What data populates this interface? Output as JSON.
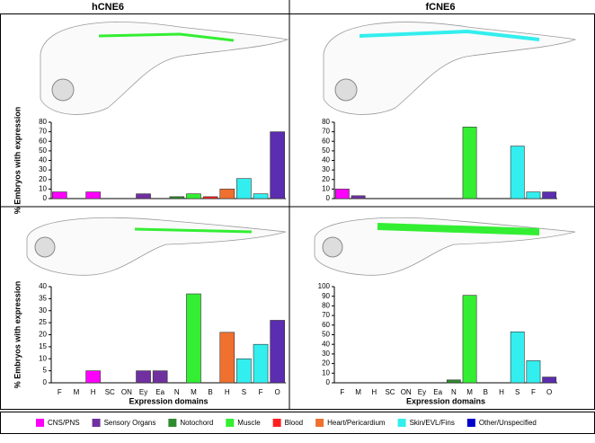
{
  "chart_data": [
    {
      "type": "bar",
      "title": "hCNE6",
      "ylabel": "% Embryos with expression",
      "categories": [
        null,
        null,
        null,
        null,
        null,
        null,
        null,
        null,
        null,
        null,
        null,
        null,
        null,
        null
      ],
      "values": [
        7,
        0,
        7,
        0,
        0,
        5,
        0,
        2,
        5,
        2,
        10,
        21,
        5,
        70
      ],
      "colors": [
        "#ff00ff",
        "#ff00ff",
        "#ff00ff",
        "#ff00ff",
        "#ff00ff",
        "#7030a0",
        "#7030a0",
        "#2e8b2e",
        "#33ee33",
        "#ff2020",
        "#f07030",
        "#33eeee",
        "#33eeee",
        "#5b2db0"
      ],
      "ylim": [
        0,
        80
      ],
      "yticks": [
        0,
        10,
        20,
        30,
        40,
        50,
        60,
        70,
        80
      ]
    },
    {
      "type": "bar",
      "title": "fCNE6",
      "categories": [
        null,
        null,
        null,
        null,
        null,
        null,
        null,
        null,
        null,
        null,
        null,
        null,
        null,
        null
      ],
      "values": [
        10,
        3,
        0,
        0,
        0,
        0,
        0,
        0,
        75,
        0,
        0,
        55,
        7,
        7
      ],
      "colors": [
        "#ff00ff",
        "#7030a0",
        "#ff00ff",
        "#ff00ff",
        "#ff00ff",
        "#7030a0",
        "#7030a0",
        "#2e8b2e",
        "#33ee33",
        "#ff2020",
        "#f07030",
        "#33eeee",
        "#33eeee",
        "#5b2db0"
      ],
      "ylim": [
        0,
        80
      ],
      "yticks": [
        0,
        10,
        20,
        30,
        40,
        50,
        60,
        70,
        80
      ]
    },
    {
      "type": "bar",
      "ylabel": "% Embryos with expression",
      "xlabel": "Expression domains",
      "categories": [
        "F",
        "M",
        "H",
        "SC",
        "ON",
        "Ey",
        "Ea",
        "N",
        "M",
        "B",
        "H",
        "S",
        "F",
        "O"
      ],
      "values": [
        0,
        0,
        5,
        0,
        0,
        5,
        5,
        0,
        37,
        0,
        21,
        10,
        16,
        26
      ],
      "colors": [
        "#ff00ff",
        "#ff00ff",
        "#ff00ff",
        "#ff00ff",
        "#ff00ff",
        "#7030a0",
        "#7030a0",
        "#2e8b2e",
        "#33ee33",
        "#ff2020",
        "#f07030",
        "#33eeee",
        "#33eeee",
        "#5b2db0"
      ],
      "ylim": [
        0,
        40
      ],
      "yticks": [
        0,
        5,
        10,
        15,
        20,
        25,
        30,
        35,
        40
      ]
    },
    {
      "type": "bar",
      "xlabel": "Expression domains",
      "categories": [
        "F",
        "M",
        "H",
        "SC",
        "ON",
        "Ey",
        "Ea",
        "N",
        "M",
        "B",
        "H",
        "S",
        "F",
        "O"
      ],
      "values": [
        0,
        0,
        0,
        0,
        0,
        0,
        0,
        3,
        91,
        0,
        0,
        53,
        23,
        6
      ],
      "colors": [
        "#ff00ff",
        "#ff00ff",
        "#ff00ff",
        "#ff00ff",
        "#ff00ff",
        "#7030a0",
        "#7030a0",
        "#2e8b2e",
        "#33ee33",
        "#ff2020",
        "#f07030",
        "#33eeee",
        "#33eeee",
        "#5b2db0"
      ],
      "ylim": [
        0,
        100
      ],
      "yticks": [
        0,
        10,
        20,
        30,
        40,
        50,
        60,
        70,
        80,
        90,
        100
      ]
    }
  ],
  "legend": [
    {
      "name": "CNS/PNS",
      "color": "#ff00ff"
    },
    {
      "name": "Sensory Organs",
      "color": "#7030a0"
    },
    {
      "name": "Notochord",
      "color": "#2e8b2e"
    },
    {
      "name": "Muscle",
      "color": "#33ee33"
    },
    {
      "name": "Blood",
      "color": "#ff2020"
    },
    {
      "name": "Heart/Pericardium",
      "color": "#f07030"
    },
    {
      "name": "Skin/EVL/Fins",
      "color": "#33eeee"
    },
    {
      "name": "Other/Unspecified",
      "color": "#0000cc"
    }
  ]
}
